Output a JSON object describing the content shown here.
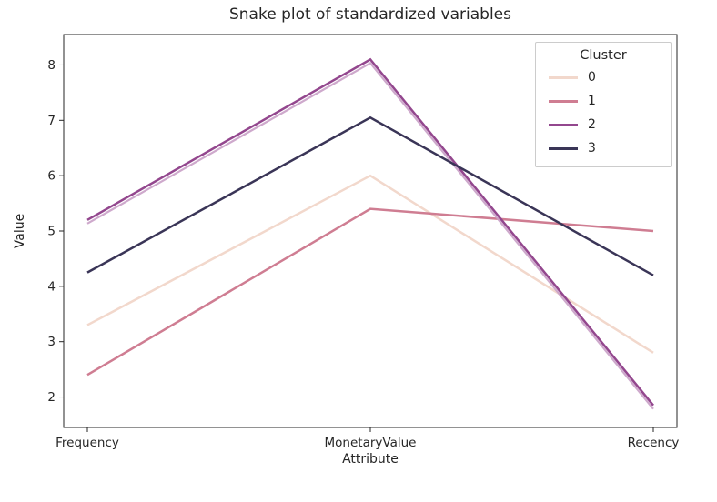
{
  "chart_data": {
    "type": "line",
    "title": "Snake plot of standardized variables",
    "xlabel": "Attribute",
    "ylabel": "Value",
    "legend_title": "Cluster",
    "legend_position": "upper right",
    "grid": false,
    "categories": [
      "Frequency",
      "MonetaryValue",
      "Recency"
    ],
    "yticks": [
      2,
      3,
      4,
      5,
      6,
      7,
      8
    ],
    "ylim": [
      1.45,
      8.55
    ],
    "series": [
      {
        "name": "0",
        "color": "#f2d8cc",
        "values": [
          3.3,
          6.0,
          2.8
        ]
      },
      {
        "name": "1",
        "color": "#cf7d92",
        "values": [
          2.4,
          5.4,
          5.0
        ]
      },
      {
        "name": "2",
        "color": "#93478e",
        "shadow": "#c9a0c6",
        "values": [
          5.2,
          8.1,
          1.85
        ]
      },
      {
        "name": "3",
        "color": "#3a3557",
        "values": [
          4.25,
          7.05,
          4.2
        ]
      }
    ],
    "axis_color": "#262626"
  }
}
